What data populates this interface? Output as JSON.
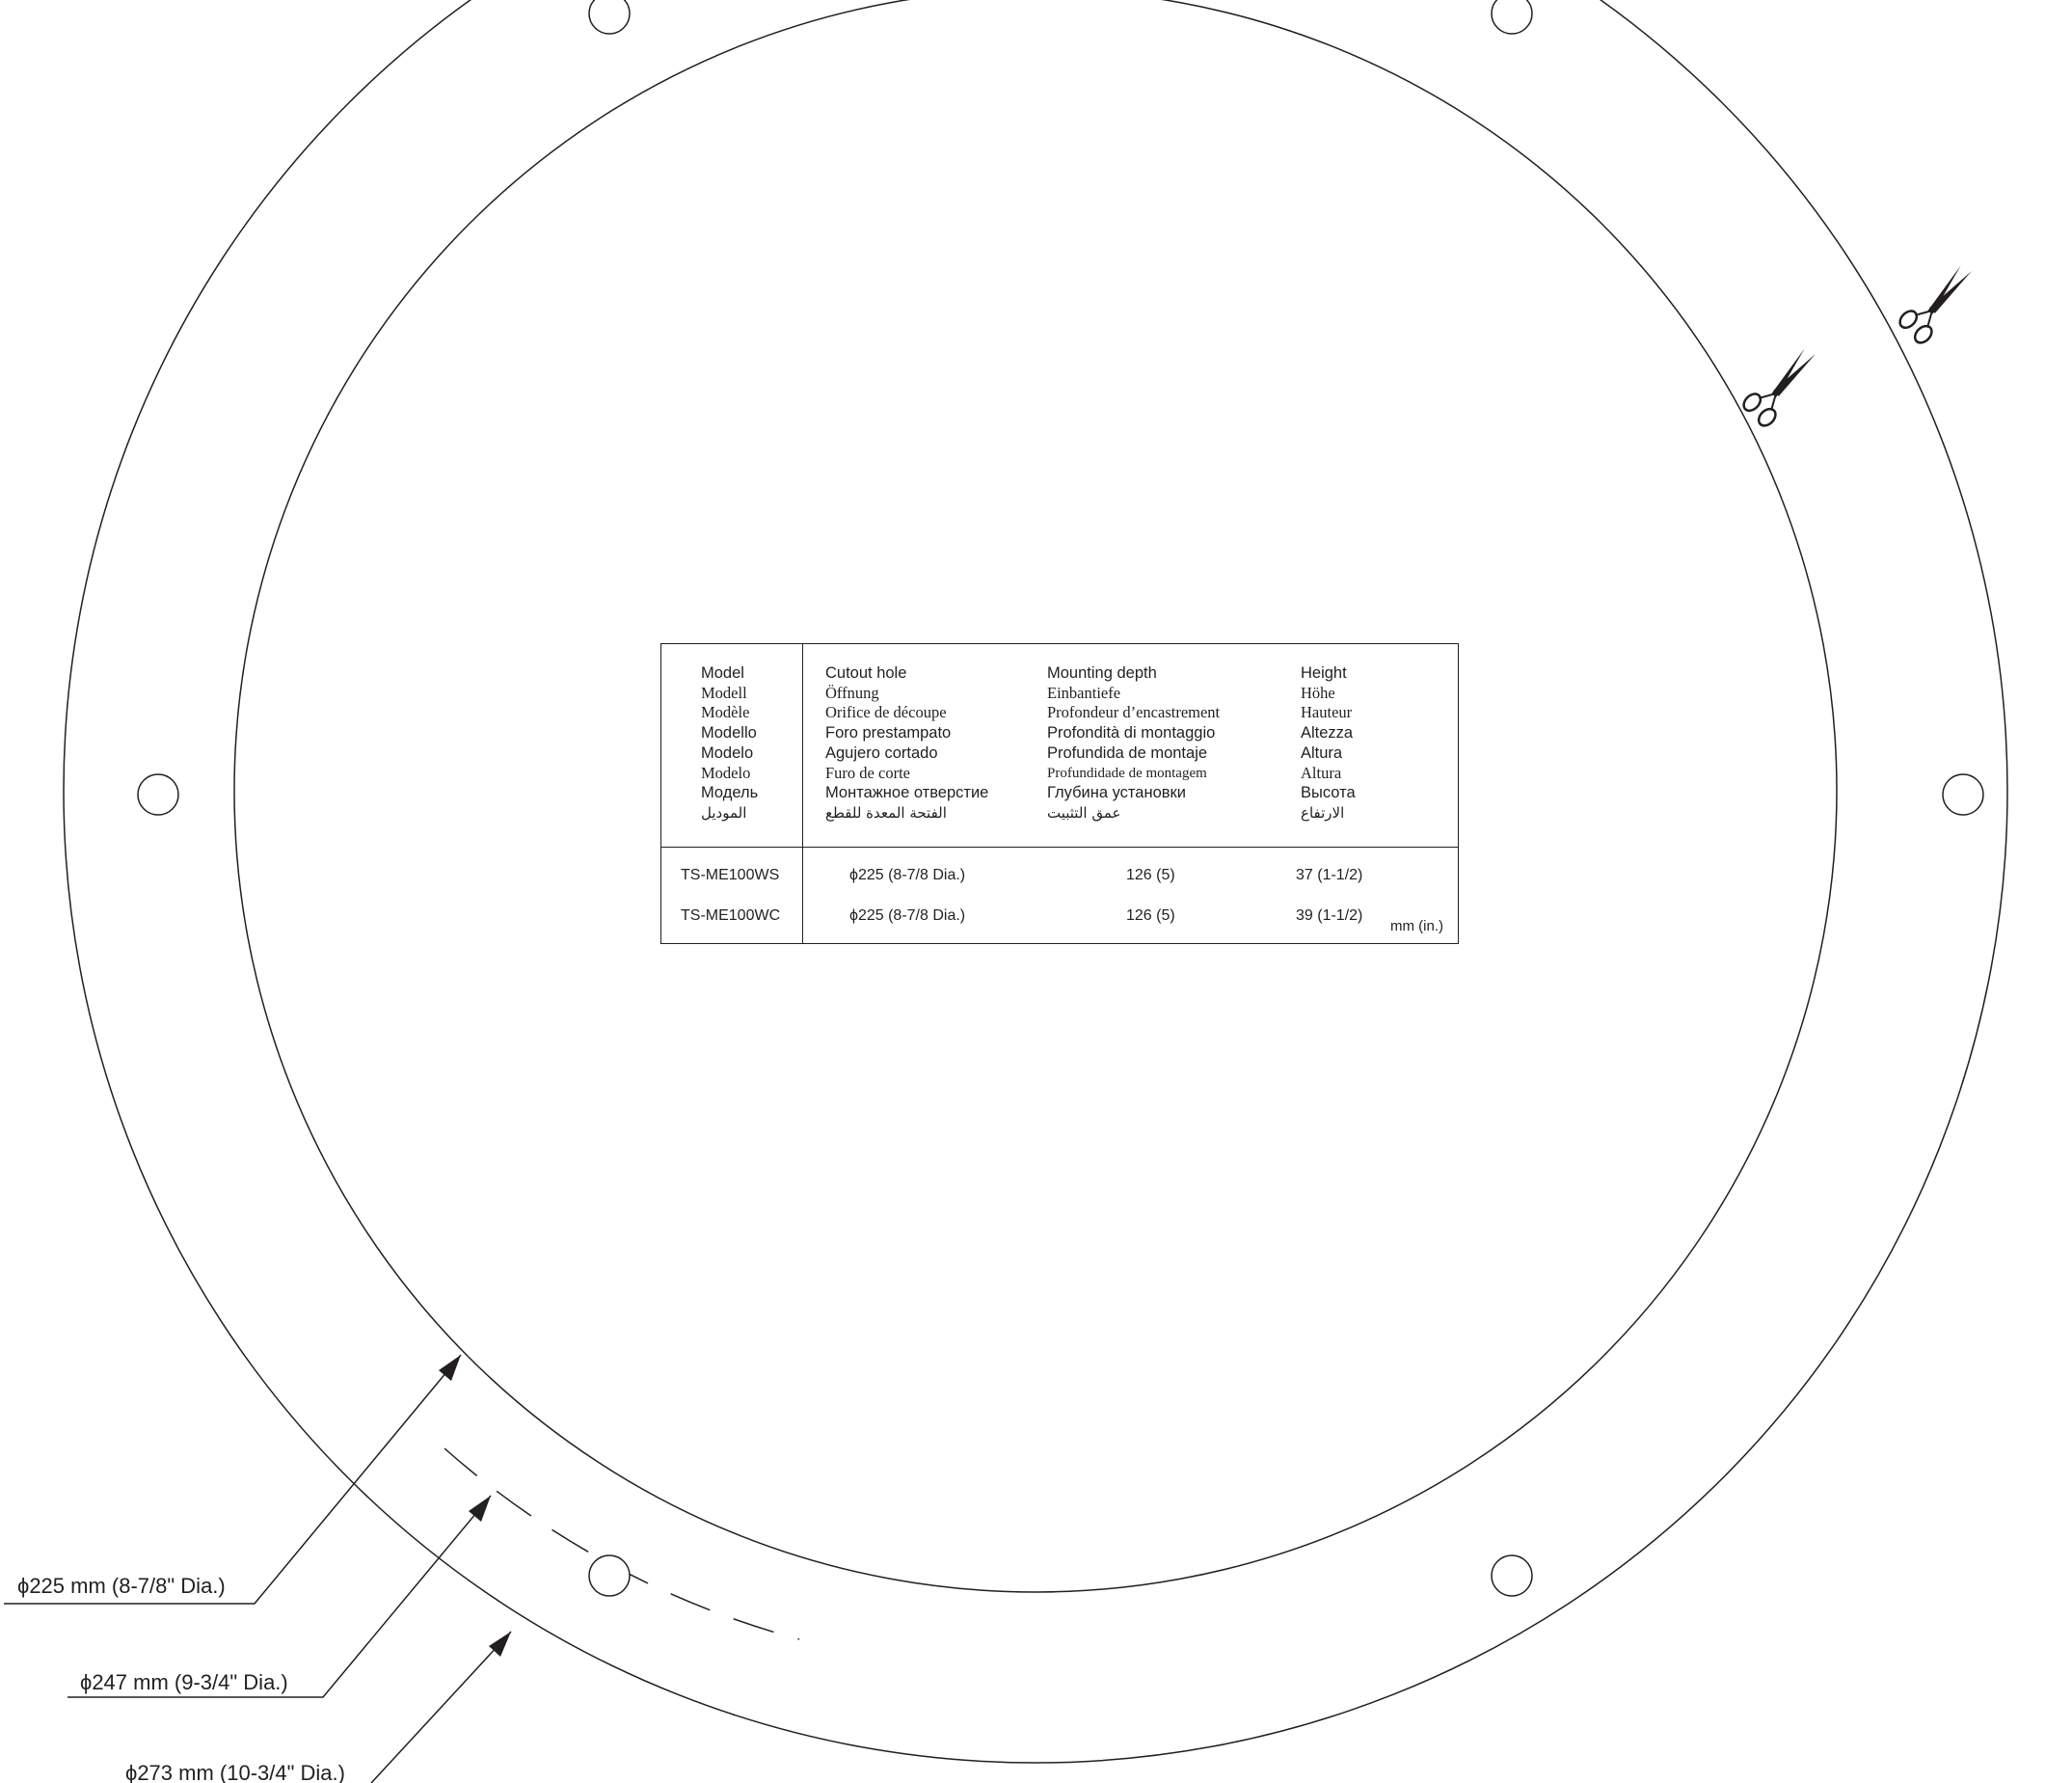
{
  "diameters": {
    "d225": "ϕ225 mm (8-7/8\" Dia.)",
    "d247": "ϕ247 mm (9-3/4\" Dia.)",
    "d273": "ϕ273 mm (10-3/4\" Dia.)"
  },
  "table": {
    "headers": {
      "model": [
        "Model",
        "Modell",
        "Modèle",
        "Modello",
        "Modelo",
        "Modelo",
        "Модель",
        "الموديل"
      ],
      "cutout": [
        "Cutout hole",
        "Öffnung",
        "Orifice de découpe",
        "Foro prestampato",
        "Agujero cortado",
        "Furo de corte",
        "Монтажное отверстие",
        "الفتحة المعدة للقطع"
      ],
      "depth": [
        "Mounting depth",
        "Einbantiefe",
        "Profondeur d’encastrement",
        "Profondità di montaggio",
        "Profundida de montaje",
        "Profundidade de montagem",
        "Глубина установки",
        "عمق التثبيت"
      ],
      "height": [
        "Height",
        "Höhe",
        "Hauteur",
        "Altezza",
        "Altura",
        "Altura",
        "Высота",
        "الارتفاع"
      ]
    },
    "rows": [
      {
        "model": "TS-ME100WS",
        "cutout": "ϕ225  (8-7/8 Dia.)",
        "depth": "126 (5)",
        "height": "37  (1-1/2)"
      },
      {
        "model": "TS-ME100WC",
        "cutout": "ϕ225  (8-7/8 Dia.)",
        "depth": "126 (5)",
        "height": "39  (1-1/2)"
      }
    ],
    "unit": "mm  (in.)"
  }
}
